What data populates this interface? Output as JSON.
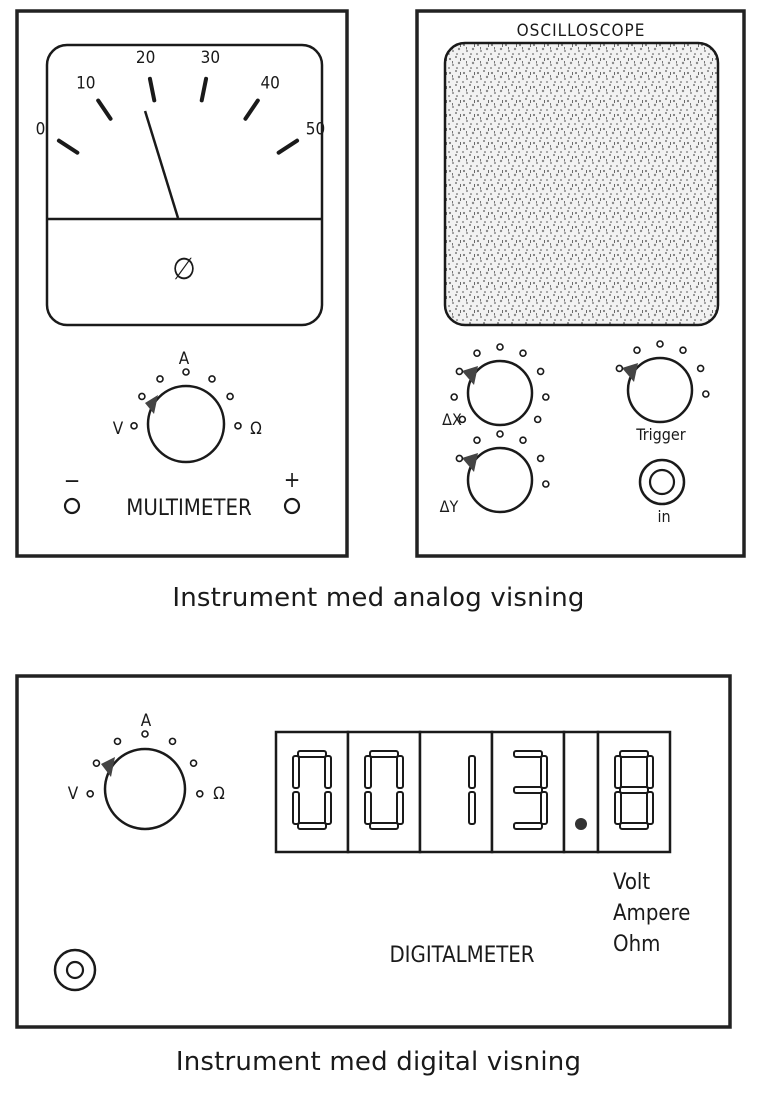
{
  "analog": {
    "multimeter": {
      "scale_ticks": [
        "0",
        "10",
        "20",
        "30",
        "40",
        "50"
      ],
      "needle_value": 17.5,
      "zero_adjust_symbol": "∅",
      "dial": {
        "top": "A",
        "left": "V",
        "right": "Ω"
      },
      "name": "MULTIMETER",
      "terminal_minus": "−",
      "terminal_plus": "+"
    },
    "oscilloscope": {
      "title": "OSCILLOSCOPE",
      "knob_dx_label": "ΔX",
      "knob_dy_label": "ΔY",
      "trigger_label": "Trigger",
      "input_label": "in"
    },
    "caption": "Instrument med analog visning"
  },
  "digital": {
    "dial": {
      "top": "A",
      "left": "V",
      "right": "Ω"
    },
    "display_digits": [
      "0",
      "0",
      "1",
      "3",
      ".",
      "8"
    ],
    "units": [
      "Volt",
      "Ampere",
      "Ohm"
    ],
    "name": "DIGITALMETER",
    "caption": "Instrument med digital visning"
  },
  "colors": {
    "ink": "#1a1a1a",
    "paper": "#ffffff",
    "screen_noise": "#9a9a9a"
  }
}
